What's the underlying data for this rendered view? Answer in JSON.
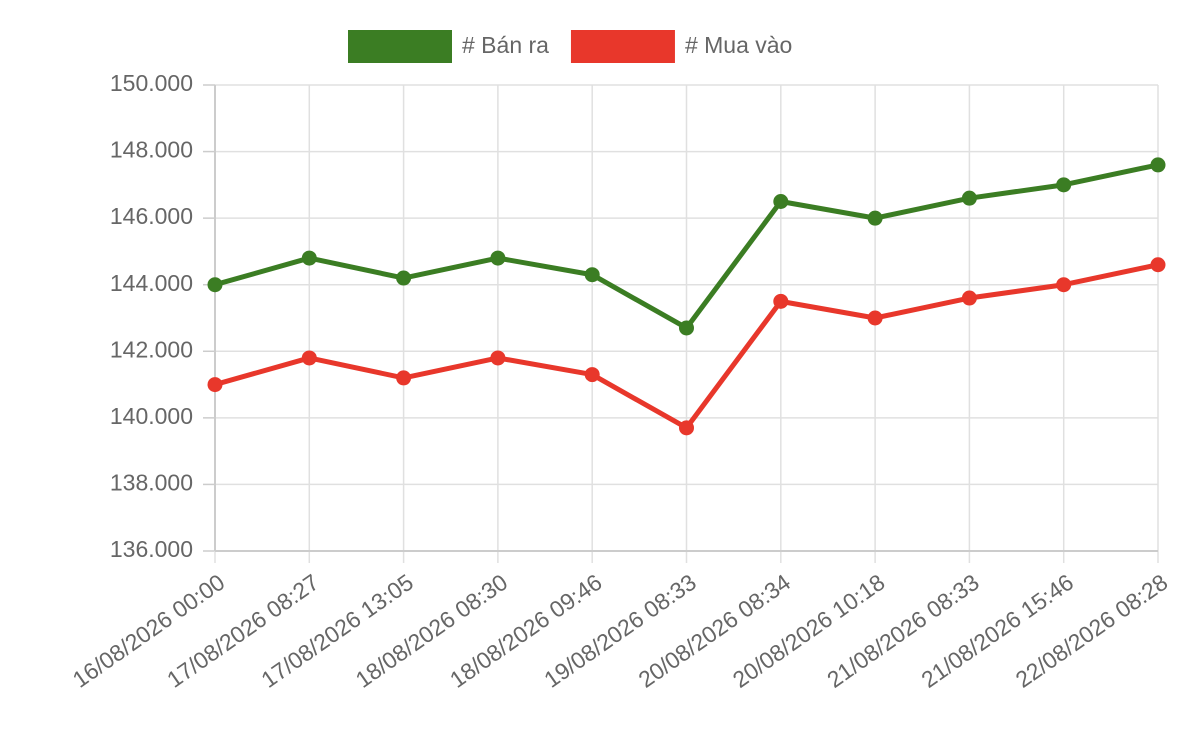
{
  "chart_data": {
    "type": "line",
    "categories": [
      "16/08/2026 00:00",
      "17/08/2026 08:27",
      "17/08/2026 13:05",
      "18/08/2026 08:30",
      "18/08/2026 09:46",
      "19/08/2026 08:33",
      "20/08/2026 08:34",
      "20/08/2026 10:18",
      "21/08/2026 08:33",
      "21/08/2026 15:46",
      "22/08/2026 08:28"
    ],
    "series": [
      {
        "name": "# Bán ra",
        "color": "#3b7d23",
        "values": [
          144000,
          144800,
          144200,
          144800,
          144300,
          142700,
          146500,
          146000,
          146600,
          147000,
          147600
        ]
      },
      {
        "name": "# Mua vào",
        "color": "#e8372b",
        "values": [
          141000,
          141800,
          141200,
          141800,
          141300,
          139700,
          143500,
          143000,
          143600,
          144000,
          144600
        ]
      }
    ],
    "ylim": [
      136000,
      150000
    ],
    "yticks": [
      {
        "value": 136000,
        "label": "136.000"
      },
      {
        "value": 138000,
        "label": "138.000"
      },
      {
        "value": 140000,
        "label": "140.000"
      },
      {
        "value": 142000,
        "label": "142.000"
      },
      {
        "value": 144000,
        "label": "144.000"
      },
      {
        "value": 146000,
        "label": "146.000"
      },
      {
        "value": 148000,
        "label": "148.000"
      },
      {
        "value": 150000,
        "label": "150.000"
      }
    ],
    "grid": true
  }
}
